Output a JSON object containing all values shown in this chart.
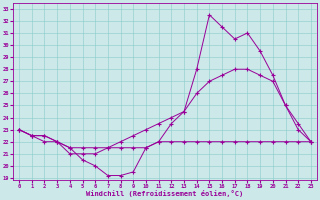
{
  "xlabel": "Windchill (Refroidissement éolien,°C)",
  "background_color": "#cce8e8",
  "line_color": "#990099",
  "xlim": [
    -0.5,
    23.5
  ],
  "ylim": [
    18.8,
    33.5
  ],
  "yticks": [
    19,
    20,
    21,
    22,
    23,
    24,
    25,
    26,
    27,
    28,
    29,
    30,
    31,
    32,
    33
  ],
  "xticks": [
    0,
    1,
    2,
    3,
    4,
    5,
    6,
    7,
    8,
    9,
    10,
    11,
    12,
    13,
    14,
    15,
    16,
    17,
    18,
    19,
    20,
    21,
    22,
    23
  ],
  "hours": [
    0,
    1,
    2,
    3,
    4,
    5,
    6,
    7,
    8,
    9,
    10,
    11,
    12,
    13,
    14,
    15,
    16,
    17,
    18,
    19,
    20,
    21,
    22,
    23
  ],
  "temp": [
    23,
    22.5,
    22.5,
    22,
    21.5,
    20.5,
    20.0,
    19.2,
    19.2,
    19.5,
    21.5,
    22,
    23.5,
    24.5,
    28,
    32.5,
    31.5,
    30.5,
    31,
    29.5,
    27.5,
    25,
    23,
    22
  ],
  "apparent": [
    23,
    22.5,
    22.5,
    22,
    21.5,
    21.5,
    21.5,
    21.5,
    22,
    22.5,
    23,
    23.5,
    24,
    24.5,
    26,
    27,
    27.5,
    28,
    28,
    27.5,
    27,
    25,
    23.5,
    22
  ],
  "windchill": [
    23,
    22.5,
    22,
    22,
    21,
    21,
    21,
    21.5,
    21.5,
    21.5,
    21.5,
    22,
    22,
    22,
    22,
    22,
    22,
    22,
    22,
    22,
    22,
    22,
    22,
    22
  ]
}
